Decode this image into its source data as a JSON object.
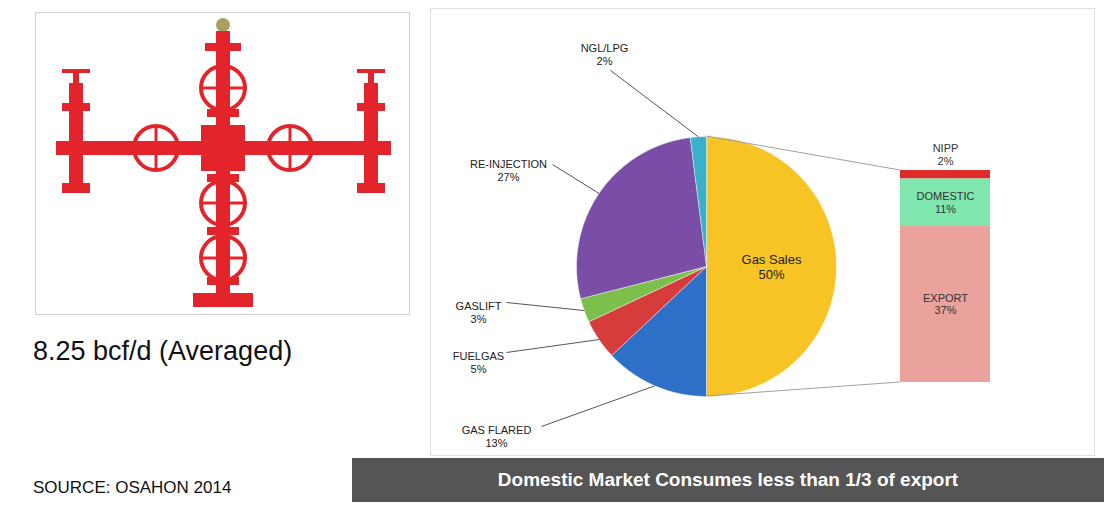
{
  "chart_data": [
    {
      "type": "pie",
      "title": "8.25 bcf/d (Averaged)",
      "caption": "SOURCE: OSAHON 2014",
      "annotations": [
        "Domestic Market Consumes less than 1/3 of export"
      ],
      "categories": [
        "Gas Sales",
        "GAS FLARED",
        "FUELGAS",
        "GASLIFT",
        "RE-INJECTION",
        "NGL/LPG"
      ],
      "values": [
        50,
        13,
        5,
        3,
        27,
        2
      ],
      "value_labels": [
        "50%",
        "13%",
        "5%",
        "3%",
        "27%",
        "2%"
      ],
      "colors": [
        "#f7c325",
        "#2e6fc8",
        "#d63c3c",
        "#7cbf4a",
        "#7a4ea6",
        "#3bb0c9"
      ],
      "data_labels": true
    },
    {
      "type": "bar",
      "stacked": true,
      "categories": [
        "NIPP",
        "DOMESTIC",
        "EXPORT"
      ],
      "values": [
        2,
        11,
        37
      ],
      "value_labels": [
        "2%",
        "11%",
        "37%"
      ],
      "colors": [
        "#e02b2b",
        "#7fe6ae",
        "#e9a29c"
      ],
      "data_labels": true,
      "tick_labels": false
    }
  ]
}
